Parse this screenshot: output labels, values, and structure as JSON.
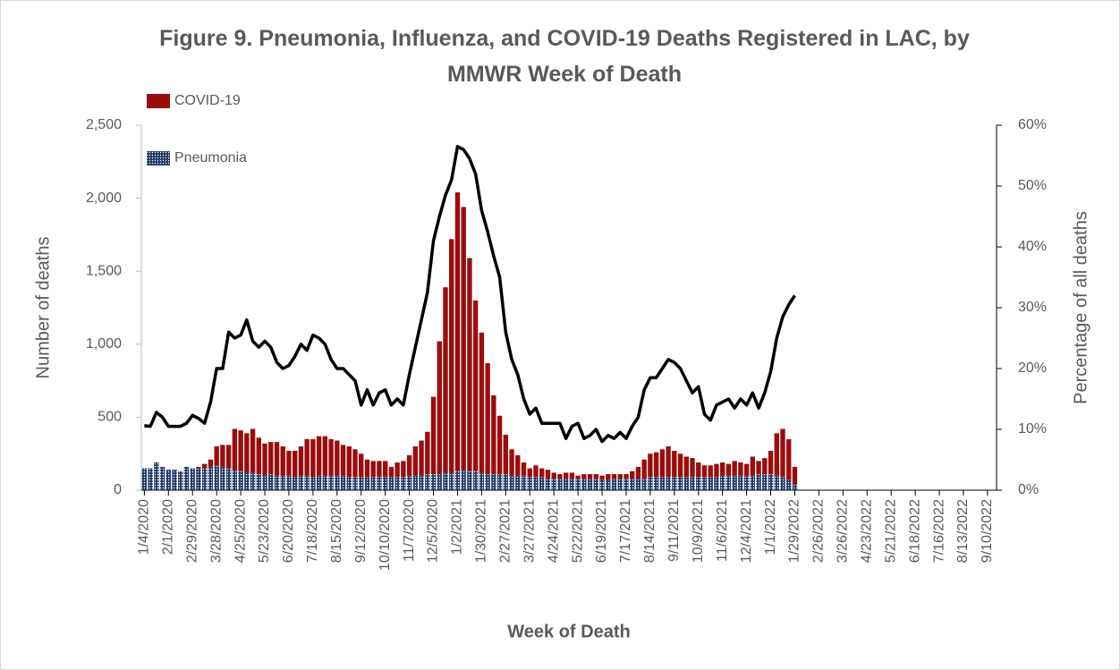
{
  "chart_data": {
    "type": "bar",
    "stacked": true,
    "title": "Figure 9. Pneumonia, Influenza, and COVID-19 Deaths Registered in LAC, by MMWR Week of Death",
    "x_label": "Week of Death",
    "y_label": "Number of deaths",
    "y2_label": "Percentage of all deaths",
    "categories": [
      "1/4/2020",
      null,
      null,
      null,
      "2/1/2020",
      null,
      null,
      null,
      "2/29/2020",
      null,
      null,
      null,
      "3/28/2020",
      null,
      null,
      null,
      "4/25/2020",
      null,
      null,
      null,
      "5/23/2020",
      null,
      null,
      null,
      "6/20/2020",
      null,
      null,
      null,
      "7/18/2020",
      null,
      null,
      null,
      "8/15/2020",
      null,
      null,
      null,
      "9/12/2020",
      null,
      null,
      null,
      "10/10/2020",
      null,
      null,
      null,
      "11/7/2020",
      null,
      null,
      null,
      "12/5/2020",
      null,
      null,
      null,
      "1/2/2021",
      null,
      null,
      null,
      "1/30/2021",
      null,
      null,
      null,
      "2/27/2021",
      null,
      null,
      null,
      "3/27/2021",
      null,
      null,
      null,
      "4/24/2021",
      null,
      null,
      null,
      "5/22/2021",
      null,
      null,
      null,
      "6/19/2021",
      null,
      null,
      null,
      "7/17/2021",
      null,
      null,
      null,
      "8/14/2021",
      null,
      null,
      null,
      "9/11/2021",
      null,
      null,
      null,
      "10/9/2021",
      null,
      null,
      null,
      "11/6/2021",
      null,
      null,
      null,
      "12/4/2021",
      null,
      null,
      null,
      "1/1/2022",
      null,
      null,
      null,
      "1/29/2022",
      null,
      null,
      null,
      "2/26/2022",
      null,
      null,
      null,
      "3/26/2022",
      null,
      null,
      null,
      "4/23/2022",
      null,
      null,
      null,
      "5/21/2022",
      null,
      null,
      null,
      "6/18/2022",
      null,
      null,
      null,
      "7/16/2022",
      null,
      null,
      null,
      "8/13/2022",
      null,
      null,
      null,
      "9/10/2022",
      null
    ],
    "series": [
      {
        "name": "COVID-19",
        "color": "#9b0d0d",
        "values": [
          0,
          0,
          0,
          0,
          0,
          0,
          0,
          0,
          0,
          10,
          30,
          50,
          130,
          150,
          160,
          280,
          280,
          270,
          300,
          250,
          220,
          220,
          230,
          200,
          170,
          180,
          200,
          250,
          260,
          270,
          270,
          250,
          240,
          210,
          210,
          190,
          160,
          120,
          110,
          110,
          110,
          70,
          100,
          110,
          140,
          200,
          240,
          290,
          530,
          910,
          1270,
          1600,
          1910,
          1800,
          1460,
          1170,
          960,
          760,
          540,
          400,
          270,
          180,
          140,
          90,
          60,
          80,
          60,
          60,
          40,
          30,
          40,
          40,
          20,
          30,
          30,
          30,
          30,
          40,
          30,
          30,
          30,
          50,
          80,
          130,
          160,
          170,
          190,
          210,
          180,
          160,
          140,
          130,
          100,
          80,
          80,
          90,
          90,
          80,
          100,
          90,
          80,
          130,
          90,
          110,
          160,
          290,
          330,
          280,
          120,
          null,
          null,
          null,
          null,
          null,
          null,
          null,
          null,
          null,
          null,
          null,
          null,
          null,
          null,
          null,
          null,
          null,
          null,
          null,
          null,
          null,
          null,
          null,
          null,
          null,
          null,
          null,
          null,
          null,
          null,
          null,
          null,
          null
        ]
      },
      {
        "name": "Pneumonia",
        "color": "#1f3864",
        "fill_pattern": "dots",
        "values": [
          150,
          150,
          190,
          160,
          140,
          140,
          130,
          160,
          150,
          150,
          150,
          160,
          170,
          160,
          150,
          140,
          130,
          120,
          120,
          110,
          100,
          110,
          100,
          100,
          100,
          90,
          100,
          100,
          90,
          100,
          100,
          100,
          100,
          100,
          90,
          90,
          90,
          90,
          90,
          90,
          90,
          90,
          90,
          90,
          100,
          100,
          100,
          110,
          110,
          110,
          120,
          120,
          130,
          140,
          130,
          130,
          120,
          110,
          110,
          110,
          110,
          100,
          100,
          100,
          90,
          90,
          90,
          80,
          80,
          80,
          80,
          80,
          80,
          80,
          80,
          80,
          70,
          70,
          80,
          80,
          80,
          80,
          80,
          80,
          90,
          90,
          90,
          90,
          90,
          90,
          90,
          90,
          90,
          90,
          90,
          90,
          100,
          100,
          100,
          100,
          100,
          100,
          110,
          110,
          110,
          100,
          90,
          70,
          40,
          null,
          null,
          null,
          null,
          null,
          null,
          null,
          null,
          null,
          null,
          null,
          null,
          null,
          null,
          null,
          null,
          null,
          null,
          null,
          null,
          null,
          null,
          null,
          null,
          null,
          null,
          null,
          null,
          null,
          null,
          null,
          null,
          null
        ]
      },
      {
        "type": "line",
        "axis": "y2",
        "color": "#000000",
        "values": [
          10.6,
          10.5,
          12.8,
          12,
          10.5,
          10.5,
          10.5,
          11,
          12.3,
          11.8,
          11,
          14.5,
          20,
          20,
          26,
          25,
          25.5,
          28,
          24.5,
          23.5,
          24.5,
          23.5,
          21,
          20,
          20.5,
          22,
          24,
          23,
          25.5,
          25,
          24,
          21.5,
          20,
          20,
          19,
          18,
          14,
          16.5,
          14,
          16,
          16.5,
          14,
          15,
          14,
          19,
          23.5,
          28,
          32.5,
          41,
          45,
          48.5,
          51,
          56.5,
          56,
          54.5,
          52,
          46,
          42.5,
          38.5,
          35,
          26,
          21.5,
          19,
          15,
          12.5,
          13.5,
          11,
          11,
          11,
          11,
          8.5,
          10.5,
          11,
          8.5,
          9,
          10,
          8,
          9,
          8.5,
          9.5,
          8.5,
          10.5,
          12,
          16.5,
          18.5,
          18.5,
          20,
          21.5,
          21,
          20,
          18,
          16,
          17,
          12.5,
          11.5,
          14,
          14.5,
          15,
          13.5,
          15,
          14,
          16,
          13.5,
          16,
          19.5,
          25,
          28.5,
          30.5,
          32,
          null,
          null,
          null,
          null,
          null,
          null,
          null,
          null,
          null,
          null,
          null,
          null,
          null,
          null,
          null,
          null,
          null,
          null,
          null,
          null,
          null,
          null,
          null,
          null,
          null,
          null,
          null,
          null,
          null,
          null,
          null,
          null,
          null
        ]
      }
    ],
    "ylim": [
      0,
      2500
    ],
    "yticks": [
      0,
      500,
      {
        "value": 1000,
        "label": "1,000"
      },
      {
        "value": 1500,
        "label": "1,500"
      },
      {
        "value": 2000,
        "label": "2,000"
      },
      {
        "value": 2500,
        "label": "2,500"
      }
    ],
    "y2lim": [
      0,
      60
    ],
    "y2ticks": [
      {
        "value": 0,
        "label": "0%"
      },
      {
        "value": 10,
        "label": "10%"
      },
      {
        "value": 20,
        "label": "20%"
      },
      {
        "value": 30,
        "label": "30%"
      },
      {
        "value": 40,
        "label": "40%"
      },
      {
        "value": 50,
        "label": "50%"
      },
      {
        "value": 60,
        "label": "60%"
      }
    ],
    "grid": false,
    "legend": "top-left"
  }
}
